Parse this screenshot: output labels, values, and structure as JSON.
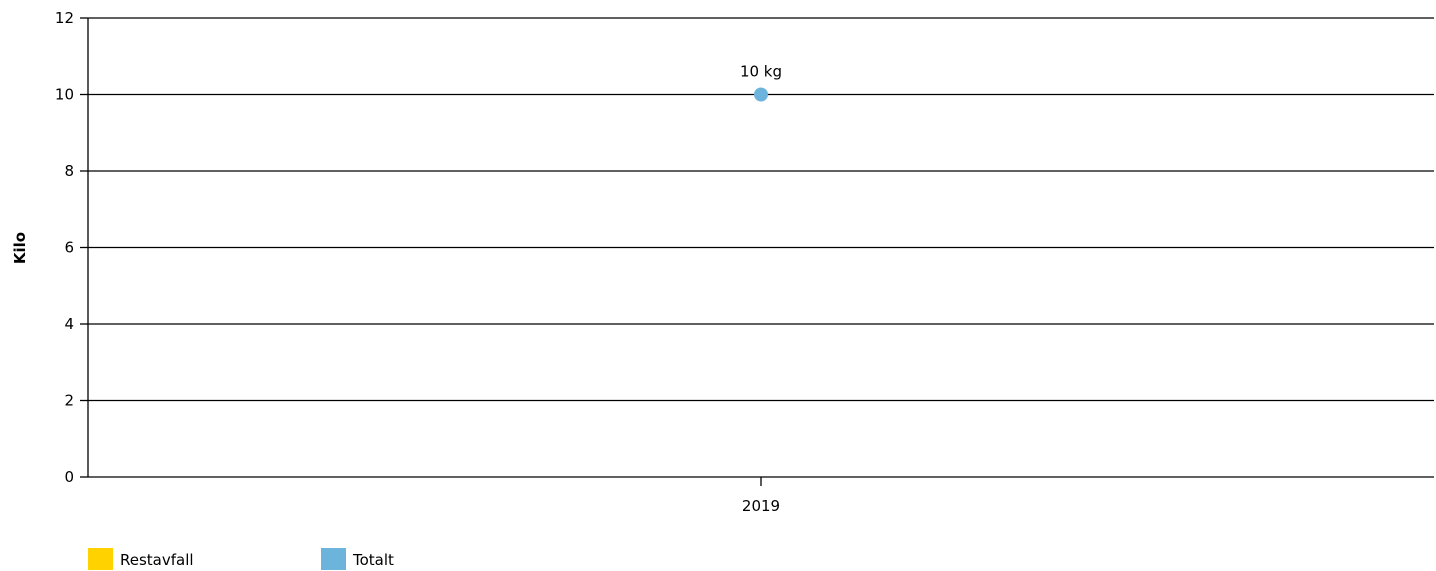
{
  "chart_data": {
    "type": "line",
    "ylabel": "Kilo",
    "xlabel": "",
    "ylim": [
      0,
      12
    ],
    "yticks": [
      "0",
      "2",
      "4",
      "6",
      "8",
      "10",
      "12"
    ],
    "categories": [
      "2019"
    ],
    "grid": true,
    "legend_position": "bottom-left",
    "series": [
      {
        "name": "Restavfall",
        "color": "#ffd200",
        "values": [
          null
        ],
        "labels": [
          null
        ]
      },
      {
        "name": "Totalt",
        "color": "#6cb4dc",
        "values": [
          10
        ],
        "labels": [
          "10 kg"
        ]
      }
    ]
  }
}
